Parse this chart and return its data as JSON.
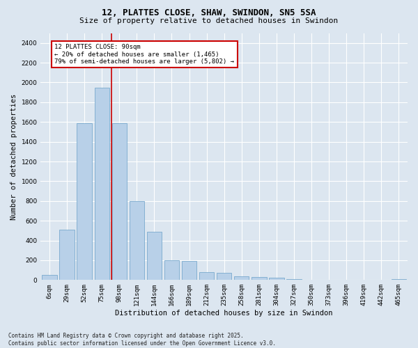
{
  "title": "12, PLATTES CLOSE, SHAW, SWINDON, SN5 5SA",
  "subtitle": "Size of property relative to detached houses in Swindon",
  "xlabel": "Distribution of detached houses by size in Swindon",
  "ylabel": "Number of detached properties",
  "categories": [
    "6sqm",
    "29sqm",
    "52sqm",
    "75sqm",
    "98sqm",
    "121sqm",
    "144sqm",
    "166sqm",
    "189sqm",
    "212sqm",
    "235sqm",
    "258sqm",
    "281sqm",
    "304sqm",
    "327sqm",
    "350sqm",
    "373sqm",
    "396sqm",
    "419sqm",
    "442sqm",
    "465sqm"
  ],
  "values": [
    50,
    510,
    1590,
    1950,
    1590,
    800,
    490,
    200,
    195,
    80,
    70,
    40,
    30,
    20,
    10,
    5,
    3,
    3,
    0,
    0,
    10
  ],
  "bar_color": "#b8d0e8",
  "bar_edgecolor": "#7aaace",
  "vline_color": "#cc0000",
  "vline_pos": 3.55,
  "annotation_title": "12 PLATTES CLOSE: 90sqm",
  "annotation_line1": "← 20% of detached houses are smaller (1,465)",
  "annotation_line2": "79% of semi-detached houses are larger (5,802) →",
  "annotation_box_edgecolor": "#cc0000",
  "ylim": [
    0,
    2500
  ],
  "yticks": [
    0,
    200,
    400,
    600,
    800,
    1000,
    1200,
    1400,
    1600,
    1800,
    2000,
    2200,
    2400
  ],
  "background_color": "#dce6f0",
  "plot_background": "#dce6f0",
  "grid_color": "#ffffff",
  "footer_line1": "Contains HM Land Registry data © Crown copyright and database right 2025.",
  "footer_line2": "Contains public sector information licensed under the Open Government Licence v3.0.",
  "title_fontsize": 9,
  "subtitle_fontsize": 8,
  "axis_label_fontsize": 7.5,
  "tick_fontsize": 6.5,
  "annotation_fontsize": 6.5,
  "footer_fontsize": 5.5
}
